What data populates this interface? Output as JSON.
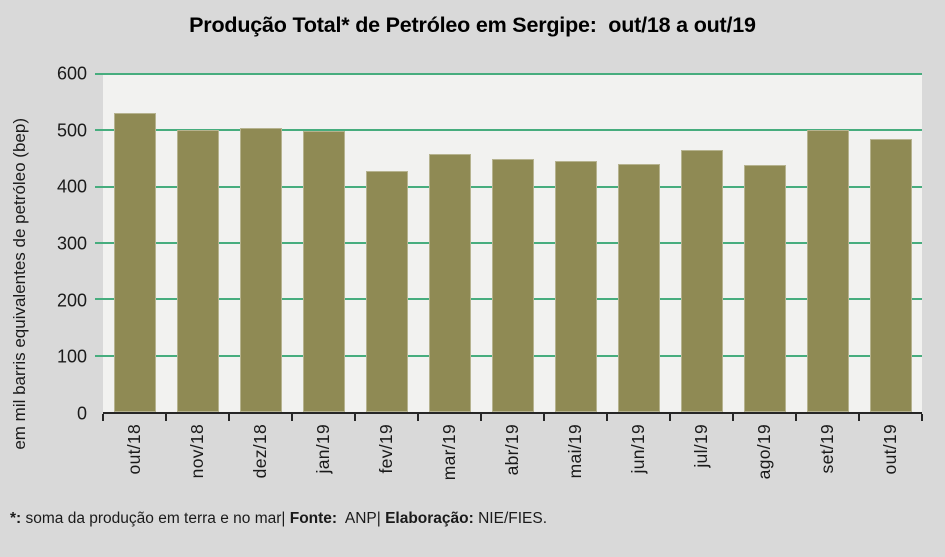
{
  "title": "Produção Total* de Petróleo em Sergipe:  out/18 a out/19",
  "chart_data": {
    "type": "bar",
    "title": "Produção Total* de Petróleo em Sergipe: out/18 a out/19",
    "categories": [
      "out/18",
      "nov/18",
      "dez/18",
      "jan/19",
      "fev/19",
      "mar/19",
      "abr/19",
      "mai/19",
      "jun/19",
      "jul/19",
      "ago/19",
      "set/19",
      "out/19"
    ],
    "values": [
      531,
      500,
      505,
      499,
      428,
      458,
      450,
      445,
      441,
      465,
      439,
      500,
      485
    ],
    "xlabel": "",
    "ylabel": "em mil barris equivalentes de petróleo (bep)",
    "ylim": [
      0,
      600
    ],
    "yticks": [
      0,
      100,
      200,
      300,
      400,
      500,
      600
    ],
    "grid": true,
    "legend": false,
    "colors": {
      "bar": "#8f8a54",
      "gridline": "#47ad7e",
      "plot_background": "#f2f2f0",
      "canvas_background": "#d9d9d9",
      "axis": "#262626"
    }
  },
  "footnote": {
    "asterisk_label": "*:",
    "text1": " soma da produção em terra e no mar| ",
    "fonte_label": "Fonte:",
    "text2": "  ANP| ",
    "elaboracao_label": "Elaboração:",
    "text3": " NIE/FIES."
  }
}
